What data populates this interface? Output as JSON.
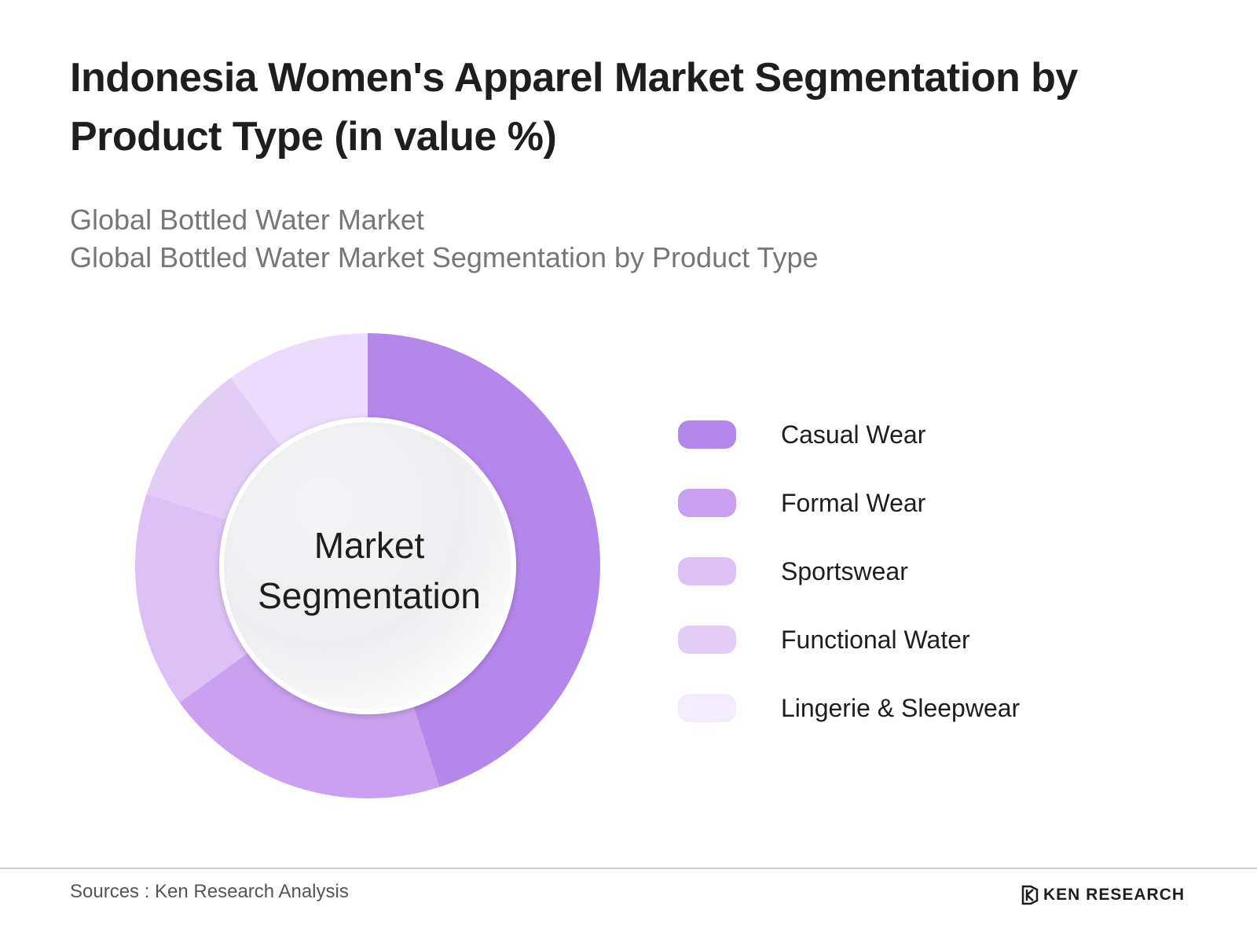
{
  "title": "Indonesia Women's Apparel Market Segmentation by Product Type (in value %)",
  "subtitle_1": "Global Bottled Water Market",
  "subtitle_2": "Global Bottled Water Market Segmentation by Product Type",
  "center_label": "Market Segmentation",
  "source": "Sources : Ken Research Analysis",
  "logo_text": "KEN RESEARCH",
  "chart_data": {
    "type": "pie",
    "variant": "donut",
    "center_text": "Market Segmentation",
    "legend_position": "right",
    "series": [
      {
        "name": "Casual Wear",
        "value": 45,
        "color": "#b487ea"
      },
      {
        "name": "Formal Wear",
        "value": 20,
        "color": "#c9a1f0"
      },
      {
        "name": "Sportswear",
        "value": 15,
        "color": "#dcc1f6"
      },
      {
        "name": "Functional Water",
        "value": 10,
        "color": "#e2cdf7"
      },
      {
        "name": "Lingerie & Sleepwear",
        "value": 10,
        "color": "#ecdcfb"
      }
    ],
    "legend_colors": [
      "#b487ea",
      "#c9a1f0",
      "#dcc1f6",
      "#e2cdf7",
      "#f3ecfc"
    ]
  }
}
